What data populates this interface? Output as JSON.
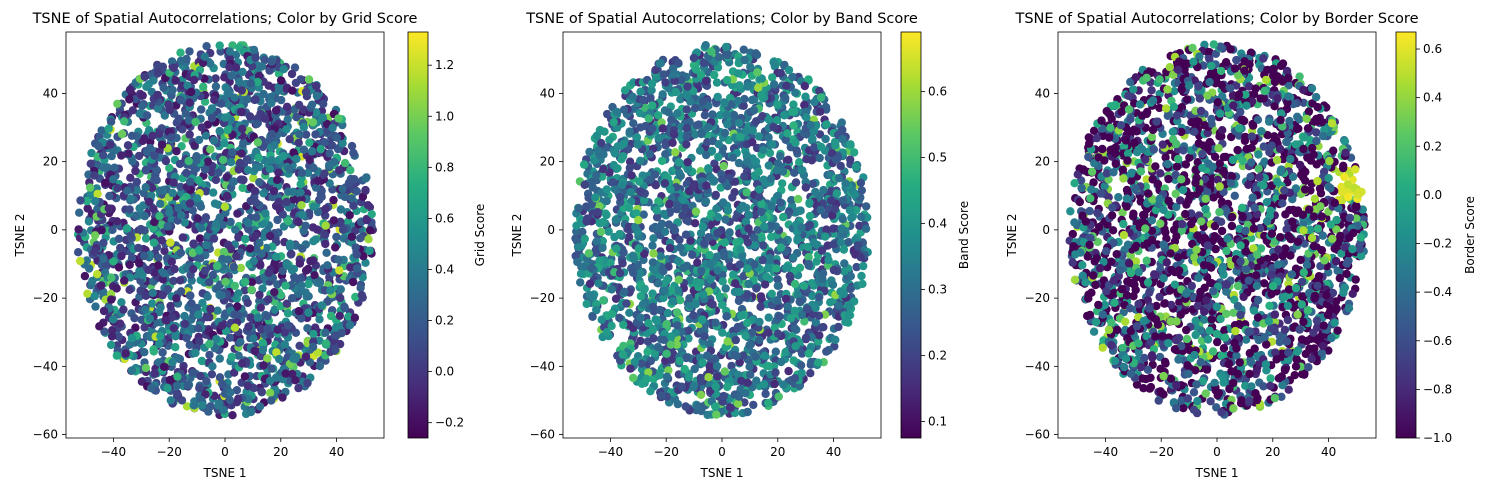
{
  "chart_data": [
    {
      "type": "scatter",
      "title": "TSNE of Spatial Autocorrelations; Color by Grid Score",
      "xlabel": "TSNE 1",
      "ylabel": "TSNE 2",
      "xlim": [
        -57,
        57
      ],
      "ylim": [
        -61,
        58
      ],
      "xticks": [
        -40,
        -20,
        0,
        20,
        40
      ],
      "yticks": [
        -60,
        -40,
        -20,
        0,
        20,
        40
      ],
      "colormap": "viridis",
      "colorbar": {
        "label": "Grid Score",
        "range": [
          -0.26,
          1.33
        ],
        "ticks": [
          -0.2,
          0.0,
          0.2,
          0.4,
          0.6,
          0.8,
          1.0,
          1.2
        ]
      },
      "point_cloud": {
        "center": [
          0,
          0
        ],
        "x_extent": [
          -53,
          53
        ],
        "y_extent": [
          -55,
          54
        ],
        "approx_points": 2500
      }
    },
    {
      "type": "scatter",
      "title": "TSNE of Spatial Autocorrelations; Color by Band Score",
      "xlabel": "TSNE 1",
      "ylabel": "TSNE 2",
      "xlim": [
        -57,
        57
      ],
      "ylim": [
        -61,
        58
      ],
      "xticks": [
        -40,
        -20,
        0,
        20,
        40
      ],
      "yticks": [
        -60,
        -40,
        -20,
        0,
        20,
        40
      ],
      "colormap": "viridis",
      "colorbar": {
        "label": "Band Score",
        "range": [
          0.075,
          0.69
        ],
        "ticks": [
          0.1,
          0.2,
          0.3,
          0.4,
          0.5,
          0.6
        ]
      },
      "point_cloud": {
        "center": [
          0,
          0
        ],
        "x_extent": [
          -53,
          53
        ],
        "y_extent": [
          -55,
          54
        ],
        "approx_points": 2500
      }
    },
    {
      "type": "scatter",
      "title": "TSNE of Spatial Autocorrelations; Color by Border Score",
      "xlabel": "TSNE 1",
      "ylabel": "TSNE 2",
      "xlim": [
        -57,
        57
      ],
      "ylim": [
        -61,
        58
      ],
      "xticks": [
        -40,
        -20,
        0,
        20,
        40
      ],
      "yticks": [
        -60,
        -40,
        -20,
        0,
        20,
        40
      ],
      "colormap": "viridis",
      "colorbar": {
        "label": "Border Score",
        "range": [
          -1.0,
          0.67
        ],
        "ticks": [
          -1.0,
          -0.8,
          -0.6,
          -0.4,
          -0.2,
          0.0,
          0.2,
          0.4,
          0.6
        ]
      },
      "point_cloud": {
        "center": [
          0,
          0
        ],
        "x_extent": [
          -53,
          53
        ],
        "y_extent": [
          -55,
          54
        ],
        "approx_points": 2500
      }
    }
  ]
}
